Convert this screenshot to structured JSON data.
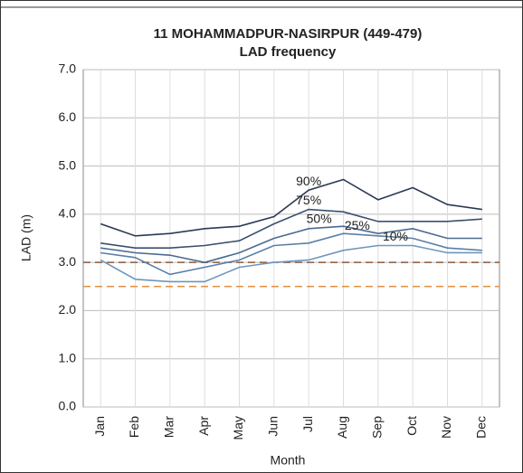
{
  "chart_data": {
    "type": "line",
    "title": "11 MOHAMMADPUR-NASIRPUR (449-479)",
    "subtitle": "LAD frequency",
    "ylabel": "LAD (m)",
    "xlabel": "Month",
    "categories": [
      "Jan",
      "Feb",
      "Mar",
      "Apr",
      "May",
      "Jun",
      "Jul",
      "Aug",
      "Sep",
      "Oct",
      "Nov",
      "Dec"
    ],
    "series": [
      {
        "name": "90%",
        "color": "#2b3a55",
        "values": [
          3.8,
          3.55,
          3.6,
          3.7,
          3.75,
          3.95,
          4.5,
          4.72,
          4.3,
          4.55,
          4.2,
          4.1
        ]
      },
      {
        "name": "75%",
        "color": "#3a4f70",
        "values": [
          3.4,
          3.3,
          3.3,
          3.35,
          3.45,
          3.8,
          4.1,
          4.05,
          3.85,
          3.85,
          3.85,
          3.9
        ]
      },
      {
        "name": "50%",
        "color": "#4a6a90",
        "values": [
          3.3,
          3.2,
          3.15,
          3.0,
          3.2,
          3.5,
          3.7,
          3.75,
          3.6,
          3.7,
          3.5,
          3.5
        ]
      },
      {
        "name": "25%",
        "color": "#5a7fa8",
        "values": [
          3.2,
          3.1,
          2.75,
          2.9,
          3.05,
          3.35,
          3.4,
          3.6,
          3.55,
          3.5,
          3.3,
          3.25
        ]
      },
      {
        "name": "10%",
        "color": "#6f95bf",
        "values": [
          3.05,
          2.65,
          2.6,
          2.6,
          2.9,
          3.0,
          3.05,
          3.25,
          3.35,
          3.35,
          3.2,
          3.2
        ]
      }
    ],
    "reference_lines": [
      {
        "value": 3.0,
        "color": "#8a5a3a"
      },
      {
        "value": 2.5,
        "color": "#e09040"
      }
    ],
    "ylim": [
      0,
      7
    ],
    "yticks": [
      {
        "value": 0,
        "label": "0.0"
      },
      {
        "value": 1,
        "label": "1.0"
      },
      {
        "value": 2,
        "label": "2.0"
      },
      {
        "value": 3,
        "label": "3.0"
      },
      {
        "value": 4,
        "label": "4.0"
      },
      {
        "value": 5,
        "label": "5.0"
      },
      {
        "value": 6,
        "label": "6.0"
      },
      {
        "value": 7,
        "label": "7.0"
      }
    ],
    "grid": true
  }
}
